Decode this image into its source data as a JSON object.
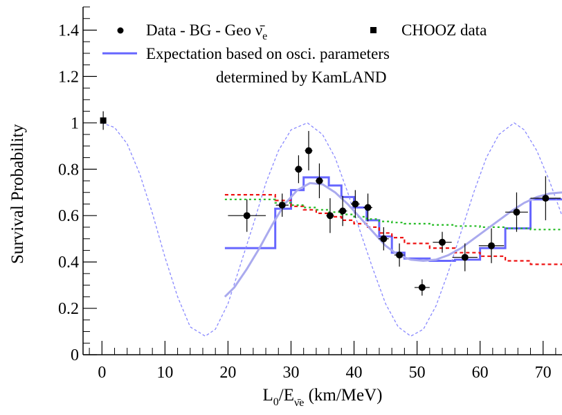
{
  "chart_data": {
    "type": "scatter",
    "title": "",
    "xlabel": {
      "main": "L",
      "sub1": "0",
      "mid": "/E",
      "sub2": "ν̄e",
      "tail": " (km/MeV)"
    },
    "ylabel": "Survival Probability",
    "xlim": [
      -3,
      73
    ],
    "ylim": [
      0,
      1.5
    ],
    "x_ticks": [
      0,
      10,
      20,
      30,
      40,
      50,
      60,
      70
    ],
    "x_tick_labels": [
      "0",
      "10",
      "20",
      "30",
      "40",
      "50",
      "60",
      "70"
    ],
    "y_ticks": [
      0,
      0.2,
      0.4,
      0.6,
      0.8,
      1,
      1.2,
      1.4
    ],
    "y_tick_labels": [
      "0",
      "0.2",
      "0.4",
      "0.6",
      "0.8",
      "1",
      "1.2",
      "1.4"
    ],
    "grid": false,
    "legend_position": "top",
    "legend": [
      {
        "name": "Data - BG - Geo ",
        "nu": "ν̄",
        "sub": "e",
        "marker": "circle"
      },
      {
        "name": "CHOOZ data",
        "marker": "square"
      },
      {
        "name": "Expectation based on osci. parameters",
        "line2": "determined by KamLAND",
        "marker": "line"
      }
    ],
    "series": [
      {
        "name": "Data - BG - Geo ν̄e",
        "kind": "points",
        "color": "#000000",
        "points": [
          {
            "x": 23.0,
            "y": 0.6,
            "xerr": 3.0,
            "yerr": 0.07
          },
          {
            "x": 28.6,
            "y": 0.645,
            "xerr": 1.0,
            "yerr": 0.05
          },
          {
            "x": 31.2,
            "y": 0.8,
            "xerr": 0.6,
            "yerr": 0.06
          },
          {
            "x": 32.8,
            "y": 0.88,
            "xerr": 0.6,
            "yerr": 0.085
          },
          {
            "x": 34.5,
            "y": 0.75,
            "xerr": 0.6,
            "yerr": 0.075
          },
          {
            "x": 36.2,
            "y": 0.6,
            "xerr": 0.6,
            "yerr": 0.075
          },
          {
            "x": 38.2,
            "y": 0.62,
            "xerr": 0.7,
            "yerr": 0.065
          },
          {
            "x": 40.2,
            "y": 0.65,
            "xerr": 0.7,
            "yerr": 0.06
          },
          {
            "x": 42.2,
            "y": 0.635,
            "xerr": 0.7,
            "yerr": 0.06
          },
          {
            "x": 44.7,
            "y": 0.5,
            "xerr": 0.8,
            "yerr": 0.05
          },
          {
            "x": 47.2,
            "y": 0.43,
            "xerr": 0.8,
            "yerr": 0.05
          },
          {
            "x": 50.8,
            "y": 0.29,
            "xerr": 1.2,
            "yerr": 0.035
          },
          {
            "x": 54.0,
            "y": 0.485,
            "xerr": 1.5,
            "yerr": 0.045
          },
          {
            "x": 57.6,
            "y": 0.42,
            "xerr": 2.0,
            "yerr": 0.06
          },
          {
            "x": 61.8,
            "y": 0.47,
            "xerr": 2.0,
            "yerr": 0.075
          },
          {
            "x": 65.8,
            "y": 0.615,
            "xerr": 1.8,
            "yerr": 0.085
          },
          {
            "x": 70.4,
            "y": 0.675,
            "xerr": 2.4,
            "yerr": 0.095
          }
        ]
      },
      {
        "name": "CHOOZ data",
        "kind": "squares",
        "color": "#000000",
        "points": [
          {
            "x": 0.2,
            "y": 1.01,
            "yerr": 0.04
          }
        ]
      },
      {
        "name": "Expectation based on osci. parameters determined by KamLAND",
        "kind": "step",
        "color": "#6666ff",
        "x_edges": [
          19.5,
          27.5,
          30.0,
          32.0,
          34.0,
          36.0,
          38.0,
          40.0,
          42.0,
          44.0,
          46.0,
          48.0,
          52.0,
          56.0,
          60.0,
          64.0,
          68.0,
          73.0
        ],
        "values": [
          0.46,
          0.63,
          0.71,
          0.765,
          0.765,
          0.73,
          0.68,
          0.635,
          0.58,
          0.51,
          0.44,
          0.415,
          0.405,
          0.41,
          0.46,
          0.545,
          0.67
        ]
      },
      {
        "name": "",
        "kind": "step",
        "color": "#ee1111",
        "dash": "5,4",
        "x_edges": [
          19.5,
          27.5,
          30.0,
          32.0,
          34.0,
          36.0,
          38.0,
          40.0,
          42.0,
          44.0,
          46.0,
          48.0,
          52.0,
          56.0,
          60.0,
          64.0,
          68.0,
          73.0
        ],
        "values": [
          0.69,
          0.665,
          0.64,
          0.625,
          0.61,
          0.595,
          0.58,
          0.565,
          0.55,
          0.525,
          0.505,
          0.48,
          0.46,
          0.44,
          0.425,
          0.405,
          0.39
        ]
      },
      {
        "name": "",
        "kind": "step",
        "color": "#22bb22",
        "dash": "3,4",
        "x_edges": [
          19.5,
          27.5,
          30.0,
          32.0,
          34.0,
          36.0,
          38.0,
          40.0,
          42.0,
          44.0,
          46.0,
          48.0,
          52.0,
          56.0,
          60.0,
          64.0,
          68.0,
          73.0
        ],
        "values": [
          0.67,
          0.655,
          0.645,
          0.635,
          0.625,
          0.615,
          0.605,
          0.595,
          0.585,
          0.575,
          0.57,
          0.565,
          0.56,
          0.555,
          0.55,
          0.545,
          0.54
        ]
      },
      {
        "name": "",
        "kind": "curve",
        "color": "#8888ff",
        "dash": "4,3",
        "x": [
          0,
          2,
          4,
          6,
          8,
          10,
          12,
          14,
          16.4,
          18,
          20,
          22,
          24,
          26,
          28,
          30,
          32.6,
          35,
          37,
          39,
          41,
          43,
          45,
          47,
          49,
          51,
          53,
          55,
          57,
          59,
          61,
          63,
          65.4,
          67,
          69,
          71,
          73
        ],
        "y": [
          1.0,
          0.98,
          0.91,
          0.78,
          0.61,
          0.42,
          0.25,
          0.12,
          0.08,
          0.11,
          0.22,
          0.39,
          0.56,
          0.74,
          0.88,
          0.97,
          1.0,
          0.95,
          0.85,
          0.7,
          0.53,
          0.37,
          0.22,
          0.12,
          0.08,
          0.11,
          0.21,
          0.36,
          0.53,
          0.7,
          0.85,
          0.95,
          1.0,
          0.97,
          0.88,
          0.75,
          0.6
        ]
      },
      {
        "name": "",
        "kind": "curve",
        "color": "#aaaaee",
        "width": 3,
        "x": [
          19.5,
          21,
          23,
          25,
          27,
          29,
          31,
          33,
          35,
          37,
          39,
          41,
          43,
          45,
          47,
          49,
          51,
          53,
          55,
          57,
          59,
          61,
          63,
          65,
          67,
          69,
          71,
          73
        ],
        "y": [
          0.25,
          0.29,
          0.37,
          0.46,
          0.56,
          0.65,
          0.71,
          0.74,
          0.735,
          0.7,
          0.65,
          0.59,
          0.53,
          0.47,
          0.43,
          0.41,
          0.405,
          0.41,
          0.43,
          0.46,
          0.5,
          0.54,
          0.58,
          0.62,
          0.655,
          0.68,
          0.695,
          0.7
        ]
      }
    ]
  }
}
